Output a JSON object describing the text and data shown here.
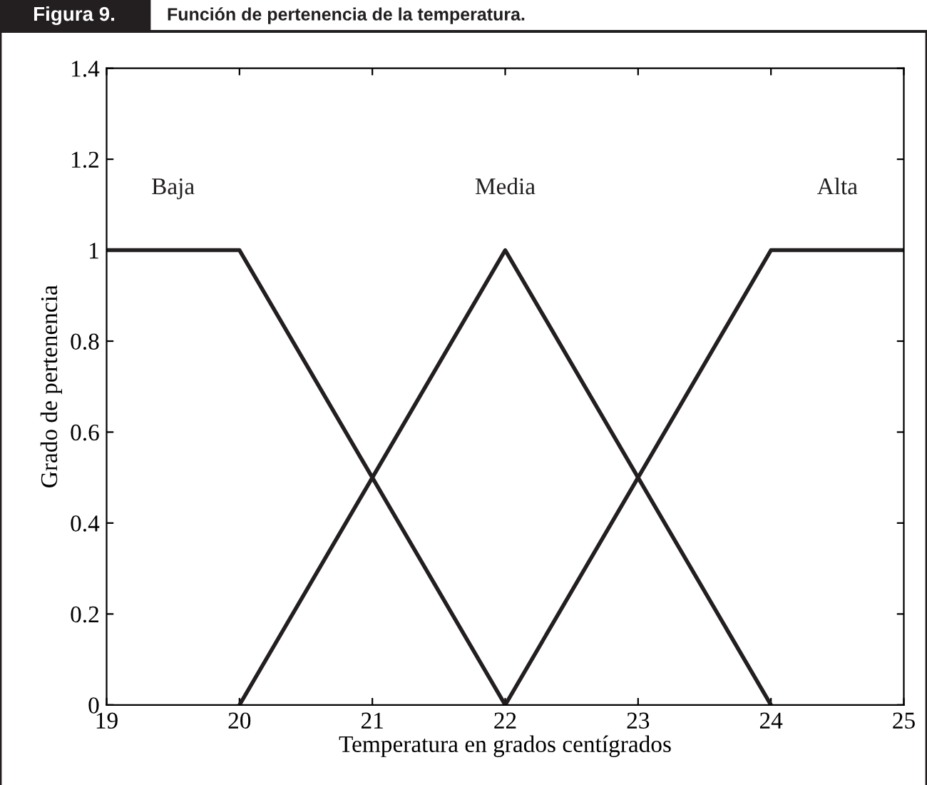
{
  "chart_data": {
    "type": "line",
    "title": "Figura 9.",
    "subtitle": "Función de pertenencia de la temperatura.",
    "xlabel": "Temperatura en grados centígrados",
    "ylabel": "Grado de pertenencia",
    "series": [
      {
        "name": "Baja",
        "color": "#231f20",
        "x": [
          19,
          20,
          22
        ],
        "values": [
          1,
          1,
          0
        ]
      },
      {
        "name": "Media",
        "color": "#231f20",
        "x": [
          20,
          22,
          24
        ],
        "values": [
          0,
          1,
          0
        ]
      },
      {
        "name": "Alta",
        "color": "#231f20",
        "x": [
          22,
          24,
          25
        ],
        "values": [
          0,
          1,
          1
        ]
      }
    ],
    "xlim": [
      19,
      25
    ],
    "xticks": [
      19,
      20,
      21,
      22,
      23,
      24,
      25
    ],
    "ylim": [
      0,
      1.4
    ],
    "yticks": [
      0,
      0.2,
      0.4,
      0.6,
      0.8,
      1,
      1.2,
      1.4
    ],
    "grid": false,
    "legend": false,
    "marker": "none",
    "line_style": "solid"
  }
}
